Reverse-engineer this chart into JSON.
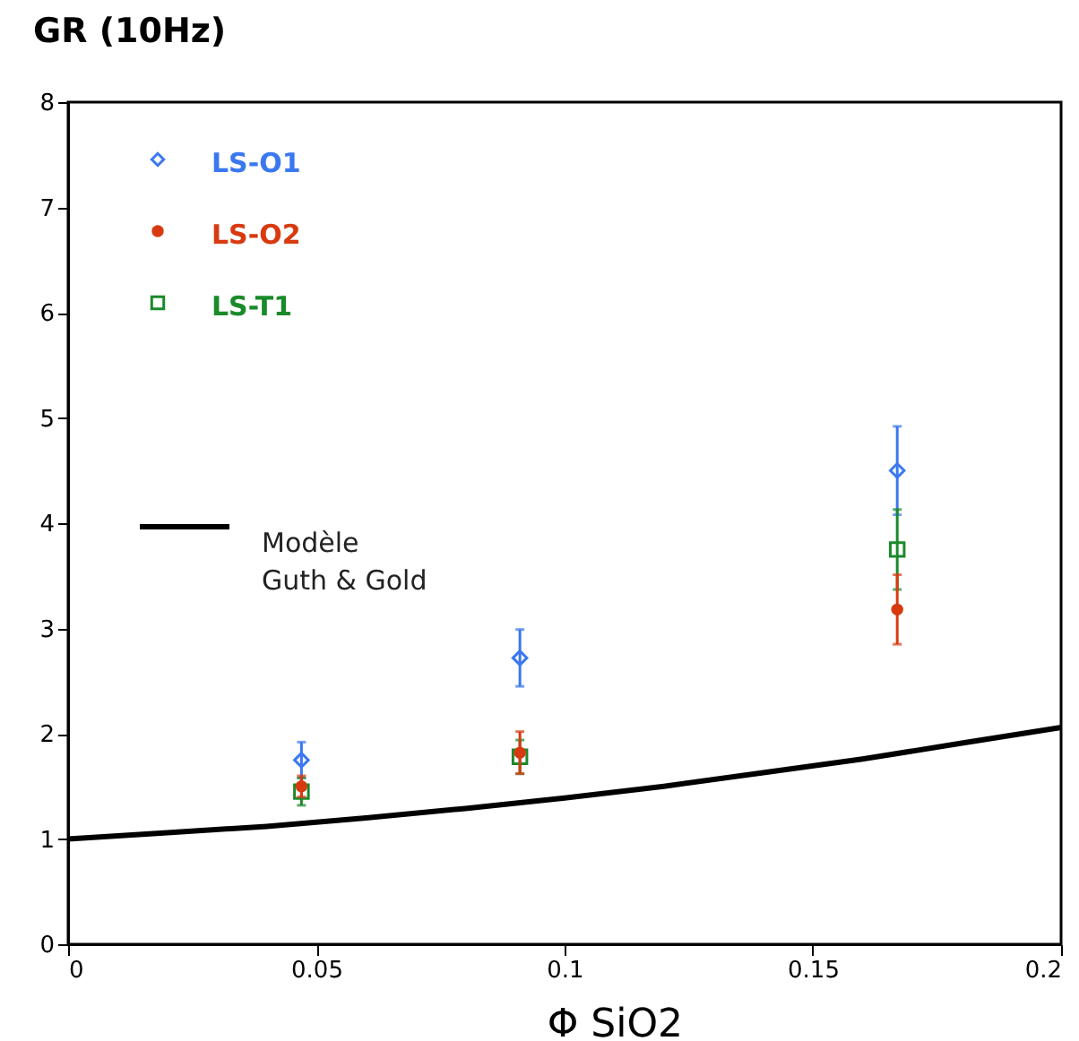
{
  "chart_data": {
    "type": "scatter",
    "xlabel": "Φ SiO2",
    "ylabel": "GR (10Hz)",
    "xlim": [
      0,
      0.2
    ],
    "xticks": [
      0,
      0.05,
      0.1,
      0.15,
      0.2
    ],
    "ylim": [
      0,
      8
    ],
    "yticks": [
      0,
      1,
      2,
      3,
      4,
      5,
      6,
      7,
      8
    ],
    "grid": false,
    "legend": "top left",
    "series": [
      {
        "name": "LS-O1",
        "color": "#3a78f0",
        "marker": "diamond",
        "x": [
          0.047,
          0.091,
          0.167
        ],
        "values": [
          1.75,
          2.72,
          4.5
        ],
        "errors": [
          0.17,
          0.27,
          0.42
        ]
      },
      {
        "name": "LS-O2",
        "color": "#d83a10",
        "marker": "circle",
        "x": [
          0.047,
          0.091,
          0.167
        ],
        "values": [
          1.5,
          1.82,
          3.18
        ],
        "errors": [
          0.1,
          0.2,
          0.33
        ]
      },
      {
        "name": "LS-T1",
        "color": "#1a8a2a",
        "marker": "square",
        "x": [
          0.047,
          0.091,
          0.167
        ],
        "values": [
          1.45,
          1.78,
          3.75
        ],
        "errors": [
          0.13,
          0.16,
          0.38
        ]
      },
      {
        "name": "Modèle\nGuth & Gold",
        "type": "line",
        "color": "#000000",
        "marker": "none",
        "line_style": "solid",
        "x": [
          0,
          0.02,
          0.04,
          0.06,
          0.08,
          0.1,
          0.12,
          0.14,
          0.16,
          0.18,
          0.2
        ],
        "values": [
          1.0,
          1.06,
          1.12,
          1.2,
          1.29,
          1.39,
          1.5,
          1.63,
          1.76,
          1.91,
          2.06
        ]
      }
    ]
  }
}
